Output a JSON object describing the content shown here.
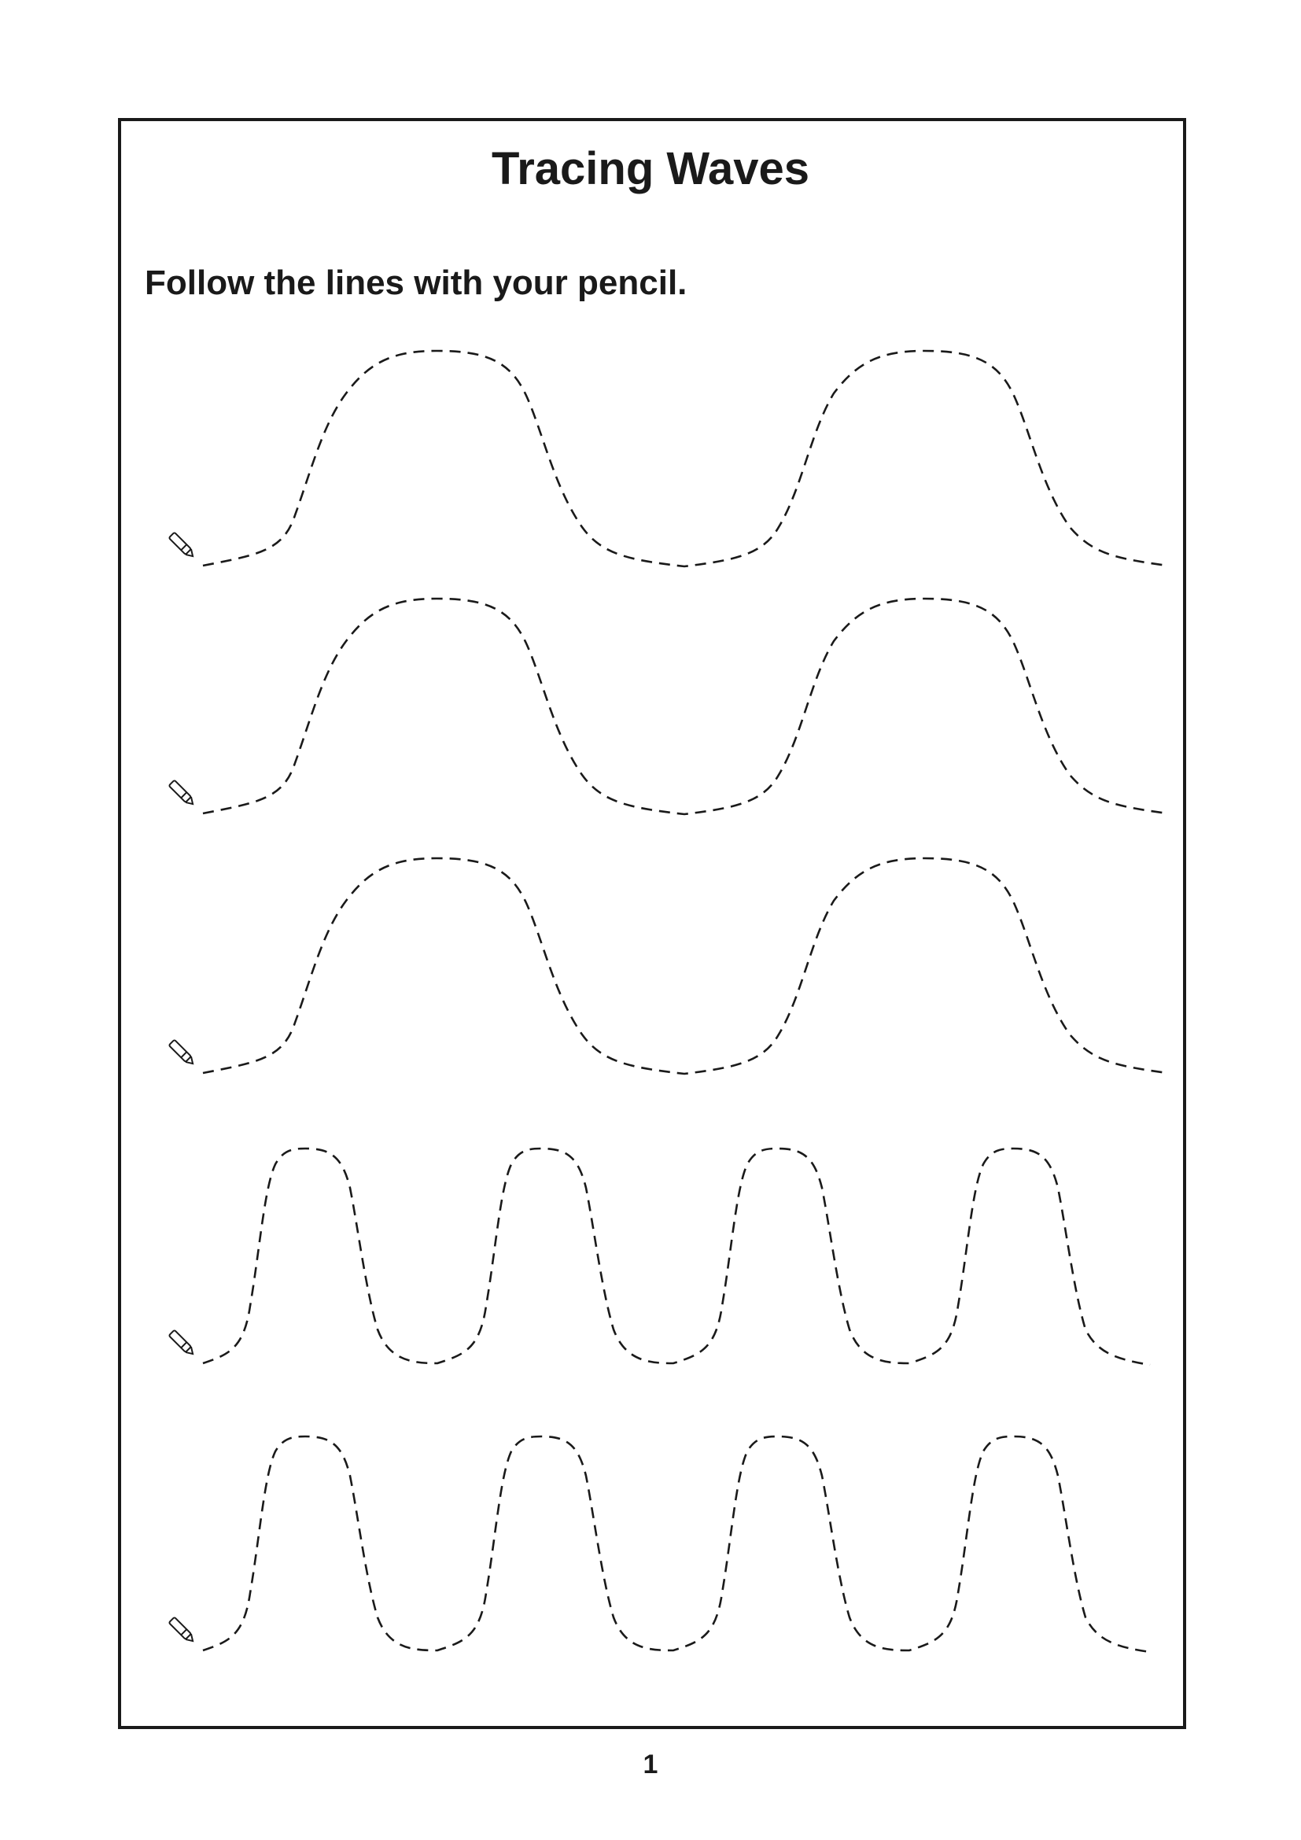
{
  "worksheet": {
    "title": "Tracing Waves",
    "instruction": "Follow the lines with your pencil.",
    "page_number": "1"
  },
  "traces": [
    {
      "type": "wide-wave",
      "periods": 2
    },
    {
      "type": "wide-wave",
      "periods": 2
    },
    {
      "type": "wide-wave",
      "periods": 2
    },
    {
      "type": "narrow-wave",
      "periods": 4
    },
    {
      "type": "narrow-wave",
      "periods": 4
    }
  ],
  "icons": {
    "start_marker": "pencil-icon"
  }
}
